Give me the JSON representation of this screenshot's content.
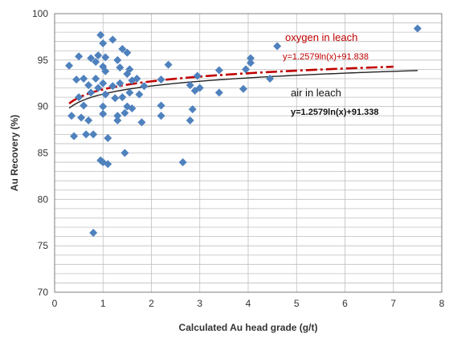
{
  "chart_data": {
    "type": "scatter",
    "title": "",
    "xlabel": "Calculated Au head grade (g/t)",
    "ylabel": "Au Recovery (%)",
    "xlim": [
      0,
      8
    ],
    "ylim": [
      70,
      100
    ],
    "x_ticks": [
      0,
      1,
      2,
      3,
      4,
      5,
      6,
      7,
      8
    ],
    "y_ticks": [
      70,
      75,
      80,
      85,
      90,
      95,
      100
    ],
    "grid": true,
    "marker": "diamond",
    "colors": {
      "points": "#4f81bd",
      "oxygen_trend": "#c00000",
      "air_trend": "#222222",
      "grid": "#bfbfbf"
    },
    "points": [
      {
        "x": 0.3,
        "y": 94.4
      },
      {
        "x": 0.35,
        "y": 89.0
      },
      {
        "x": 0.4,
        "y": 86.8
      },
      {
        "x": 0.45,
        "y": 92.9
      },
      {
        "x": 0.5,
        "y": 95.4
      },
      {
        "x": 0.5,
        "y": 91.0
      },
      {
        "x": 0.55,
        "y": 88.8
      },
      {
        "x": 0.6,
        "y": 93.0
      },
      {
        "x": 0.6,
        "y": 90.1
      },
      {
        "x": 0.65,
        "y": 87.0
      },
      {
        "x": 0.7,
        "y": 92.3
      },
      {
        "x": 0.7,
        "y": 88.5
      },
      {
        "x": 0.75,
        "y": 95.2
      },
      {
        "x": 0.75,
        "y": 91.5
      },
      {
        "x": 0.8,
        "y": 76.4
      },
      {
        "x": 0.8,
        "y": 87.0
      },
      {
        "x": 0.85,
        "y": 94.8
      },
      {
        "x": 0.85,
        "y": 93.0
      },
      {
        "x": 0.9,
        "y": 92.0
      },
      {
        "x": 0.9,
        "y": 95.5
      },
      {
        "x": 0.95,
        "y": 84.2
      },
      {
        "x": 0.95,
        "y": 97.7
      },
      {
        "x": 1.0,
        "y": 96.8
      },
      {
        "x": 1.0,
        "y": 94.3
      },
      {
        "x": 1.0,
        "y": 92.5
      },
      {
        "x": 1.0,
        "y": 90.0
      },
      {
        "x": 1.0,
        "y": 89.2
      },
      {
        "x": 1.0,
        "y": 84.0
      },
      {
        "x": 1.05,
        "y": 95.3
      },
      {
        "x": 1.05,
        "y": 93.8
      },
      {
        "x": 1.05,
        "y": 91.3
      },
      {
        "x": 1.1,
        "y": 83.8
      },
      {
        "x": 1.1,
        "y": 86.6
      },
      {
        "x": 1.2,
        "y": 97.2
      },
      {
        "x": 1.2,
        "y": 92.2
      },
      {
        "x": 1.25,
        "y": 90.9
      },
      {
        "x": 1.3,
        "y": 95.0
      },
      {
        "x": 1.3,
        "y": 89.0
      },
      {
        "x": 1.3,
        "y": 88.5
      },
      {
        "x": 1.35,
        "y": 94.2
      },
      {
        "x": 1.35,
        "y": 92.5
      },
      {
        "x": 1.4,
        "y": 96.2
      },
      {
        "x": 1.4,
        "y": 91.0
      },
      {
        "x": 1.45,
        "y": 89.3
      },
      {
        "x": 1.45,
        "y": 85.0
      },
      {
        "x": 1.5,
        "y": 95.8
      },
      {
        "x": 1.5,
        "y": 93.5
      },
      {
        "x": 1.5,
        "y": 90.0
      },
      {
        "x": 1.55,
        "y": 94.0
      },
      {
        "x": 1.55,
        "y": 91.5
      },
      {
        "x": 1.6,
        "y": 92.8
      },
      {
        "x": 1.6,
        "y": 89.8
      },
      {
        "x": 1.7,
        "y": 93.0
      },
      {
        "x": 1.75,
        "y": 91.3
      },
      {
        "x": 1.8,
        "y": 88.3
      },
      {
        "x": 1.85,
        "y": 92.2
      },
      {
        "x": 2.2,
        "y": 92.9
      },
      {
        "x": 2.2,
        "y": 90.1
      },
      {
        "x": 2.2,
        "y": 89.0
      },
      {
        "x": 2.35,
        "y": 94.5
      },
      {
        "x": 2.65,
        "y": 84.0
      },
      {
        "x": 2.8,
        "y": 92.3
      },
      {
        "x": 2.8,
        "y": 88.5
      },
      {
        "x": 2.85,
        "y": 89.7
      },
      {
        "x": 2.9,
        "y": 91.7
      },
      {
        "x": 2.95,
        "y": 93.3
      },
      {
        "x": 3.0,
        "y": 92.0
      },
      {
        "x": 3.4,
        "y": 91.5
      },
      {
        "x": 3.4,
        "y": 93.9
      },
      {
        "x": 3.9,
        "y": 91.9
      },
      {
        "x": 3.95,
        "y": 94.0
      },
      {
        "x": 4.05,
        "y": 94.7
      },
      {
        "x": 4.05,
        "y": 95.2
      },
      {
        "x": 4.45,
        "y": 93.0
      },
      {
        "x": 4.6,
        "y": 96.5
      },
      {
        "x": 7.5,
        "y": 98.4
      }
    ],
    "trendlines": [
      {
        "model": "log",
        "a": 1.2579,
        "b": 91.838,
        "x_range": [
          0.3,
          7.0
        ],
        "style": "dash-dot"
      },
      {
        "model": "log",
        "a": 1.2579,
        "b": 91.338,
        "x_range": [
          0.3,
          7.5
        ],
        "style": "solid"
      }
    ],
    "annotations": [
      {
        "text": "oxygen in leach",
        "style": "red"
      },
      {
        "text": "y=1.2579ln(x)+91.838",
        "style": "red-eq"
      },
      {
        "text": "air in leach",
        "style": "black"
      },
      {
        "text": "y=1.2579ln(x)+91.338",
        "style": "black-eq"
      }
    ]
  }
}
